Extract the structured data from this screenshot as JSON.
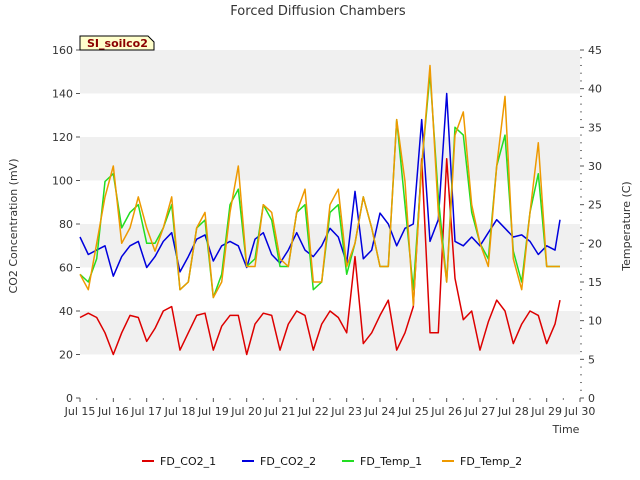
{
  "chart_data": {
    "type": "line",
    "title": "Forced Diffusion Chambers",
    "site_label": "SI_soilco2",
    "xlabel": "Time",
    "ylabel_left": "CO2 Concentration (mV)",
    "ylabel_right": "Temperature (C)",
    "x_tick_labels": [
      "Jul 15",
      "Jul 16",
      "Jul 17",
      "Jul 18",
      "Jul 19",
      "Jul 20",
      "Jul 21",
      "Jul 22",
      "Jul 23",
      "Jul 24",
      "Jul 25",
      "Jul 26",
      "Jul 27",
      "Jul 28",
      "Jul 29",
      "Jul 30"
    ],
    "xlim": [
      15,
      30
    ],
    "y_left_ticks": [
      "0",
      "20",
      "40",
      "60",
      "80",
      "100",
      "120",
      "140",
      "160"
    ],
    "ylim_left": [
      0,
      160
    ],
    "y_right_ticks": [
      "0",
      "5",
      "10",
      "15",
      "20",
      "25",
      "30",
      "35",
      "40",
      "45"
    ],
    "ylim_right": [
      0,
      45
    ],
    "grid": "horizontal bands",
    "legend_position": "bottom",
    "x": [
      15.0,
      15.25,
      15.5,
      15.75,
      16.0,
      16.25,
      16.5,
      16.75,
      17.0,
      17.25,
      17.5,
      17.75,
      18.0,
      18.25,
      18.5,
      18.75,
      19.0,
      19.25,
      19.5,
      19.75,
      20.0,
      20.25,
      20.5,
      20.75,
      21.0,
      21.25,
      21.5,
      21.75,
      22.0,
      22.25,
      22.5,
      22.75,
      23.0,
      23.25,
      23.5,
      23.75,
      24.0,
      24.25,
      24.5,
      24.75,
      25.0,
      25.25,
      25.5,
      25.75,
      26.0,
      26.25,
      26.5,
      26.75,
      27.0,
      27.25,
      27.5,
      27.75,
      28.0,
      28.25,
      28.5,
      28.75,
      29.0,
      29.25,
      29.4
    ],
    "series": [
      {
        "name": "FD_CO2_1",
        "axis": "left",
        "color": "#dd0000",
        "values": [
          37,
          39,
          37,
          30,
          20,
          30,
          38,
          37,
          26,
          32,
          40,
          42,
          22,
          30,
          38,
          39,
          22,
          33,
          38,
          38,
          20,
          34,
          39,
          38,
          22,
          34,
          40,
          38,
          22,
          34,
          40,
          37,
          30,
          65,
          25,
          30,
          38,
          45,
          22,
          30,
          42,
          110,
          30,
          30,
          110,
          55,
          36,
          40,
          22,
          35,
          45,
          40,
          25,
          34,
          40,
          38,
          25,
          34,
          45
        ]
      },
      {
        "name": "FD_CO2_2",
        "axis": "left",
        "color": "#0000dd",
        "values": [
          74,
          66,
          68,
          70,
          56,
          65,
          70,
          72,
          60,
          65,
          72,
          76,
          58,
          65,
          73,
          75,
          63,
          70,
          72,
          70,
          60,
          73,
          76,
          66,
          62,
          68,
          76,
          68,
          65,
          70,
          78,
          74,
          62,
          95,
          64,
          68,
          85,
          80,
          70,
          78,
          80,
          128,
          72,
          82,
          140,
          72,
          70,
          74,
          70,
          76,
          82,
          78,
          74,
          75,
          72,
          66,
          70,
          68,
          82
        ]
      },
      {
        "name": "FD_Temp_1",
        "axis": "right",
        "color": "#22dd22",
        "values": [
          16,
          15,
          18,
          28,
          29,
          22,
          24,
          25,
          20,
          20,
          22,
          25,
          14,
          15,
          22,
          23,
          13,
          16,
          25,
          27,
          17,
          18,
          25,
          23,
          17,
          17,
          24,
          25,
          14,
          15,
          24,
          25,
          16,
          20,
          26,
          22,
          17,
          17,
          36,
          25,
          14,
          30,
          42,
          26,
          15,
          35,
          34,
          24,
          20,
          18,
          30,
          34,
          19,
          15,
          24,
          29,
          17,
          17,
          17
        ]
      },
      {
        "name": "FD_Temp_2",
        "axis": "right",
        "color": "#ee9900",
        "values": [
          16,
          14,
          20,
          26,
          30,
          20,
          22,
          26,
          22,
          19,
          22,
          26,
          14,
          15,
          22,
          24,
          13,
          15,
          24,
          30,
          17,
          17,
          25,
          24,
          18,
          17,
          24,
          27,
          15,
          15,
          25,
          27,
          17,
          20,
          26,
          22,
          17,
          17,
          36,
          28,
          12,
          30,
          43,
          24,
          15,
          34,
          37,
          25,
          20,
          17,
          30,
          39,
          18,
          14,
          24,
          33,
          17,
          17,
          17
        ]
      }
    ]
  }
}
